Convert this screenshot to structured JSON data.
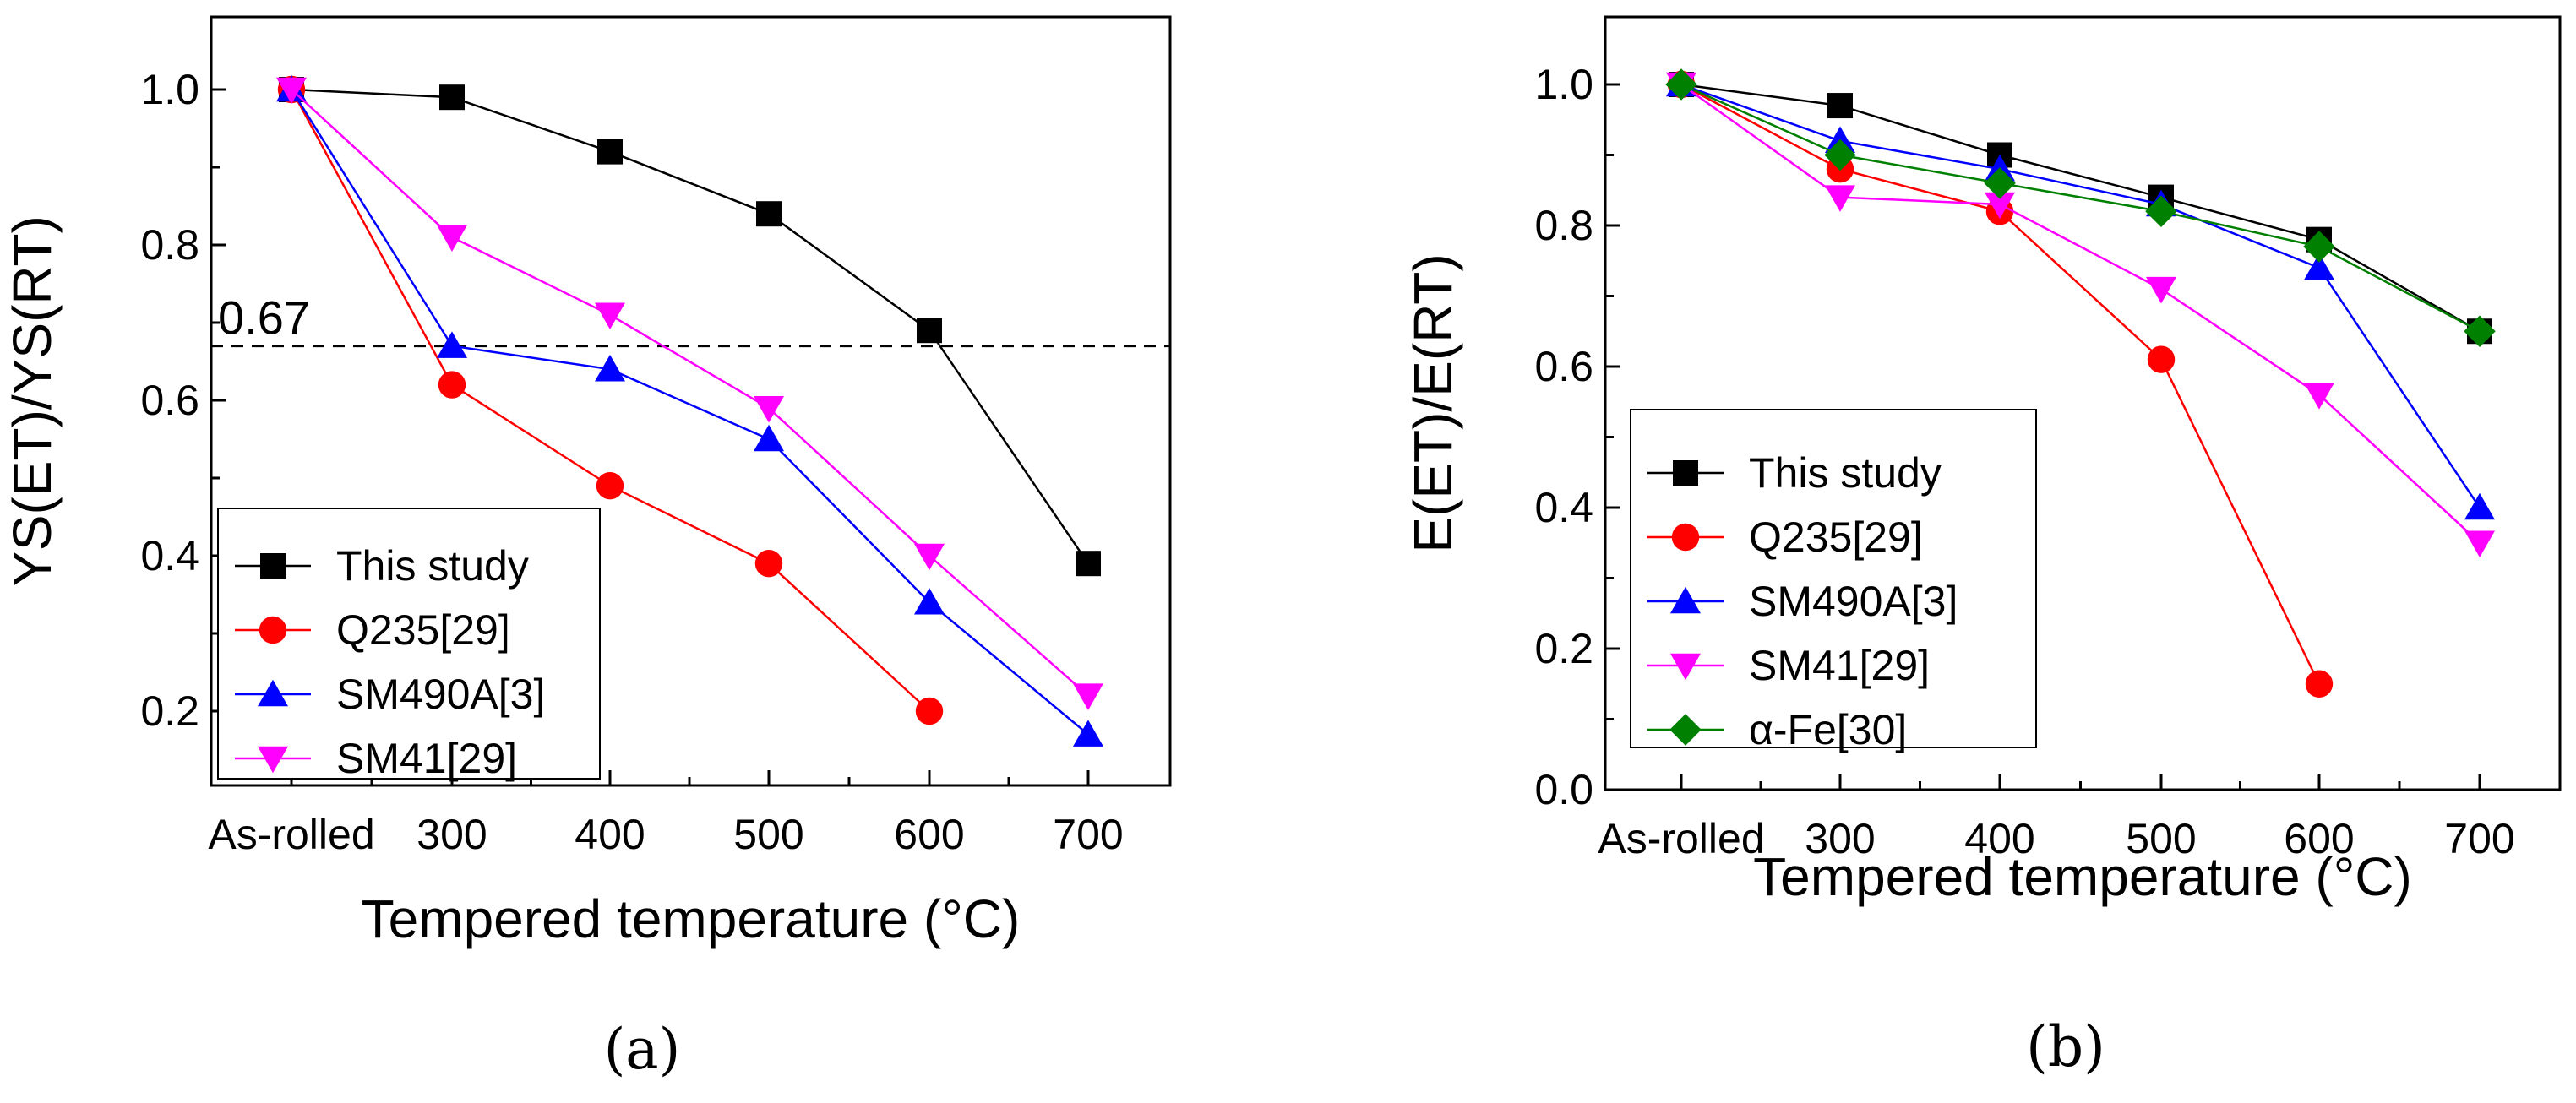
{
  "chart_data": [
    {
      "type": "line",
      "panel_label": "(a)",
      "categories": [
        "As-rolled",
        "300",
        "400",
        "500",
        "600",
        "700"
      ],
      "xlabel": "Tempered temperature (°C)",
      "ylabel": "YS(ET)/YS(RT)",
      "ylim": [
        0.1,
        1.1
      ],
      "yticks": [
        "0.2",
        "0.4",
        "0.6",
        "0.8",
        "1.0"
      ],
      "reference_line": {
        "value": 0.67,
        "label": "0.67",
        "style": "dashed"
      },
      "legend_position": "lower-left",
      "series": [
        {
          "name": "This study",
          "color": "#000000",
          "marker": "square",
          "values": [
            1.0,
            0.99,
            0.92,
            0.84,
            0.69,
            0.39
          ]
        },
        {
          "name": "Q235[29]",
          "color": "#ff0000",
          "marker": "circle",
          "values": [
            1.0,
            0.62,
            0.49,
            0.39,
            0.2,
            null
          ]
        },
        {
          "name": "SM490A[3]",
          "color": "#0000ff",
          "marker": "triangle-up",
          "values": [
            1.0,
            0.67,
            0.64,
            0.55,
            0.34,
            0.17
          ]
        },
        {
          "name": "SM41[29]",
          "color": "#ff00ff",
          "marker": "triangle-down",
          "values": [
            1.0,
            0.81,
            0.71,
            0.59,
            0.4,
            0.22
          ]
        }
      ]
    },
    {
      "type": "line",
      "panel_label": "(b)",
      "categories": [
        "As-rolled",
        "300",
        "400",
        "500",
        "600",
        "700"
      ],
      "xlabel": "Tempered temperature (°C)",
      "ylabel": "E(ET)/E(RT)",
      "ylim": [
        0.0,
        1.1
      ],
      "yticks": [
        "0.0",
        "0.2",
        "0.4",
        "0.6",
        "0.8",
        "1.0"
      ],
      "legend_position": "middle-left",
      "series": [
        {
          "name": "This study",
          "color": "#000000",
          "marker": "square",
          "values": [
            1.0,
            0.97,
            0.9,
            0.84,
            0.78,
            0.65
          ]
        },
        {
          "name": "Q235[29]",
          "color": "#ff0000",
          "marker": "circle",
          "values": [
            1.0,
            0.88,
            0.82,
            0.61,
            0.15,
            null
          ]
        },
        {
          "name": "SM490A[3]",
          "color": "#0000ff",
          "marker": "triangle-up",
          "values": [
            1.0,
            0.92,
            0.88,
            0.83,
            0.74,
            0.4
          ]
        },
        {
          "name": "SM41[29]",
          "color": "#ff00ff",
          "marker": "triangle-down",
          "values": [
            1.0,
            0.84,
            0.83,
            0.71,
            0.56,
            0.35
          ]
        },
        {
          "name": "α-Fe[30]",
          "color": "#008000",
          "marker": "diamond",
          "values": [
            1.0,
            0.9,
            0.86,
            0.82,
            0.77,
            0.65
          ]
        }
      ]
    }
  ]
}
